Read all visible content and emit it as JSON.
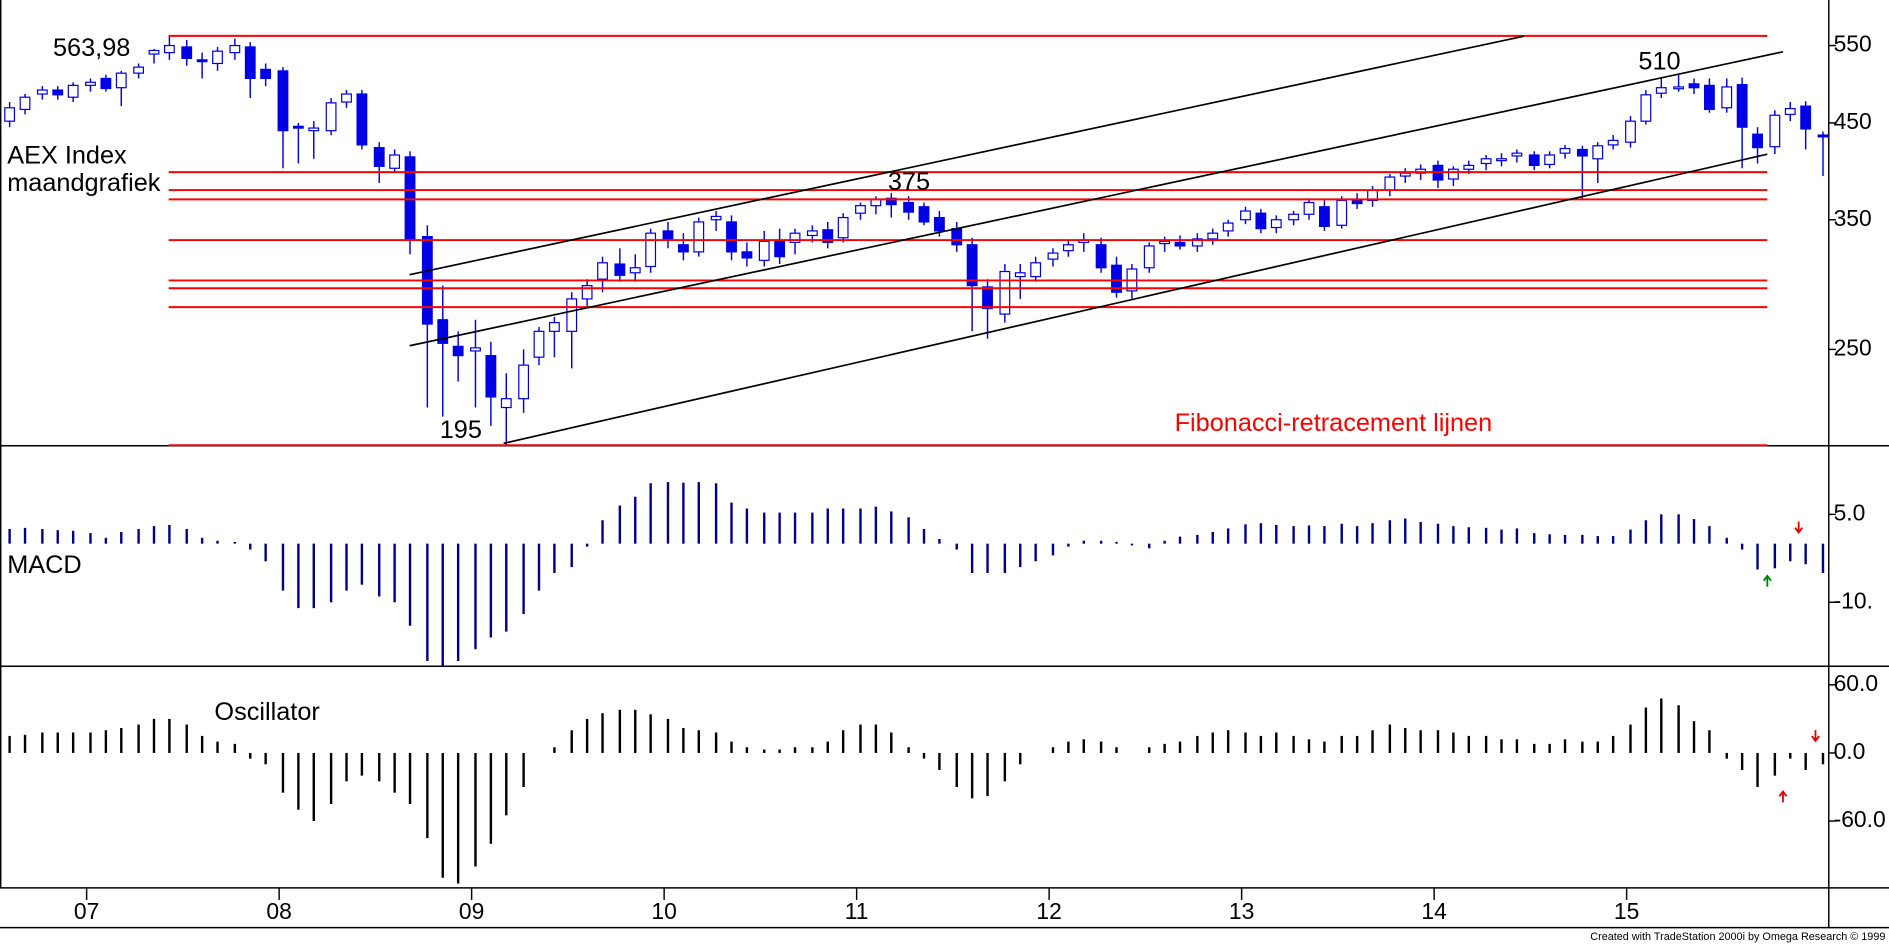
{
  "chart_data": [
    {
      "type": "candlestick",
      "title": "AEX Index",
      "subtitle": "maandgrafiek",
      "x": [
        2006.6,
        2006.68,
        2006.77,
        2006.85,
        2006.93,
        2007.02,
        2007.1,
        2007.18,
        2007.27,
        2007.35,
        2007.43,
        2007.52,
        2007.6,
        2007.68,
        2007.77,
        2007.85,
        2007.93,
        2008.02,
        2008.1,
        2008.18,
        2008.27,
        2008.35,
        2008.43,
        2008.52,
        2008.6,
        2008.68,
        2008.77,
        2008.85,
        2008.93,
        2009.02,
        2009.1,
        2009.18,
        2009.27,
        2009.35,
        2009.43,
        2009.52,
        2009.6,
        2009.68,
        2009.77,
        2009.85,
        2009.93,
        2010.02,
        2010.1,
        2010.18,
        2010.27,
        2010.35,
        2010.43,
        2010.52,
        2010.6,
        2010.68,
        2010.77,
        2010.85,
        2010.93,
        2011.02,
        2011.1,
        2011.18,
        2011.27,
        2011.35,
        2011.43,
        2011.52,
        2011.6,
        2011.68,
        2011.77,
        2011.85,
        2011.93,
        2012.02,
        2012.1,
        2012.18,
        2012.27,
        2012.35,
        2012.43,
        2012.52,
        2012.6,
        2012.68,
        2012.77,
        2012.85,
        2012.93,
        2013.02,
        2013.1,
        2013.18,
        2013.27,
        2013.35,
        2013.43,
        2013.52,
        2013.6,
        2013.68,
        2013.77,
        2013.85,
        2013.93,
        2014.02,
        2014.1,
        2014.18,
        2014.27,
        2014.35,
        2014.43,
        2014.52,
        2014.6,
        2014.68,
        2014.77,
        2014.85,
        2014.93,
        2015.02,
        2015.1,
        2015.18,
        2015.27,
        2015.35,
        2015.43,
        2015.52,
        2015.6,
        2015.68,
        2015.77,
        2015.85,
        2015.93,
        2016.02
      ],
      "open": [
        452,
        466,
        485,
        490,
        481,
        496,
        505,
        493,
        512,
        538,
        540,
        548,
        530,
        525,
        540,
        548,
        517,
        515,
        446,
        441,
        441,
        475,
        485,
        422,
        400,
        412,
        335,
        270,
        252,
        249,
        246,
        215,
        220,
        245,
        262,
        262,
        285,
        300,
        312,
        305,
        310,
        340,
        328,
        322,
        350,
        348,
        322,
        315,
        332,
        330,
        336,
        341,
        334,
        356,
        363,
        370,
        366,
        362,
        352,
        342,
        328,
        294,
        274,
        302,
        302,
        316,
        323,
        330,
        328,
        311,
        291,
        309,
        329,
        330,
        327,
        333,
        340,
        350,
        356,
        343,
        350,
        355,
        362,
        345,
        368,
        368,
        378,
        392,
        395,
        403,
        389,
        399,
        405,
        408,
        413,
        414,
        404,
        416,
        420,
        410,
        425,
        428,
        452,
        486,
        492,
        498,
        496,
        468,
        497,
        437,
        423,
        460,
        470,
        436
      ],
      "high": [
        475,
        485,
        495,
        495,
        500,
        505,
        510,
        515,
        525,
        545,
        563.98,
        558,
        540,
        548,
        560,
        555,
        525,
        520,
        450,
        452,
        480,
        490,
        490,
        428,
        420,
        418,
        345,
        295,
        262,
        270,
        255,
        235,
        250,
        265,
        272,
        290,
        300,
        318,
        325,
        320,
        342,
        348,
        338,
        352,
        358,
        354,
        330,
        340,
        342,
        342,
        345,
        348,
        356,
        366,
        372,
        375,
        372,
        366,
        358,
        348,
        334,
        300,
        312,
        312,
        318,
        325,
        332,
        338,
        334,
        318,
        312,
        330,
        335,
        336,
        338,
        342,
        350,
        362,
        360,
        354,
        358,
        370,
        368,
        372,
        375,
        382,
        394,
        400,
        404,
        408,
        402,
        408,
        414,
        416,
        420,
        418,
        418,
        425,
        424,
        428,
        436,
        458,
        490,
        505,
        510,
        505,
        505,
        505,
        506,
        445,
        465,
        475,
        476,
        440
      ],
      "low": [
        445,
        460,
        478,
        478,
        475,
        488,
        488,
        470,
        505,
        525,
        530,
        522,
        505,
        515,
        530,
        480,
        495,
        400,
        405,
        410,
        436,
        468,
        420,
        385,
        395,
        320,
        215,
        210,
        230,
        215,
        205,
        195,
        212,
        240,
        245,
        238,
        278,
        290,
        298,
        298,
        305,
        325,
        315,
        318,
        340,
        315,
        310,
        310,
        312,
        320,
        330,
        325,
        330,
        350,
        355,
        352,
        350,
        345,
        335,
        322,
        262,
        257,
        268,
        285,
        298,
        310,
        318,
        322,
        305,
        286,
        285,
        305,
        322,
        324,
        322,
        328,
        335,
        346,
        338,
        338,
        345,
        350,
        340,
        342,
        360,
        362,
        372,
        385,
        388,
        380,
        382,
        394,
        398,
        402,
        406,
        398,
        400,
        410,
        368,
        385,
        420,
        422,
        448,
        480,
        488,
        485,
        462,
        462,
        400,
        405,
        415,
        452,
        420,
        392
      ],
      "close": [
        468,
        481,
        490,
        484,
        496,
        500,
        492,
        512,
        520,
        543,
        550,
        532,
        528,
        542,
        550,
        505,
        505,
        441,
        444,
        444,
        474,
        485,
        425,
        402,
        414,
        333,
        267,
        254,
        246,
        251,
        221,
        220,
        240,
        262,
        268,
        285,
        295,
        313,
        303,
        309,
        338,
        332,
        322,
        348,
        353,
        322,
        317,
        331,
        318,
        338,
        340,
        330,
        352,
        363,
        369,
        364,
        357,
        348,
        340,
        328,
        295,
        278,
        306,
        305,
        313,
        321,
        328,
        332,
        309,
        290,
        308,
        327,
        331,
        327,
        333,
        338,
        347,
        358,
        342,
        350,
        355,
        366,
        344,
        368,
        365,
        378,
        391,
        395,
        399,
        388,
        399,
        403,
        410,
        410,
        416,
        403,
        414,
        421,
        413,
        424,
        430,
        452,
        484,
        493,
        494,
        493,
        466,
        494,
        445,
        422,
        459,
        467,
        443,
        434
      ],
      "color": "#0000e6",
      "up_fill": "#ffffff",
      "yscale": "log",
      "ylim": [
        194.7,
        619
      ],
      "yticks": [
        250,
        350,
        450,
        550
      ],
      "xlim": [
        2006.55,
        2016.05
      ],
      "xticks": [
        {
          "value": 2007,
          "label": "07"
        },
        {
          "value": 2008,
          "label": "08"
        },
        {
          "value": 2009,
          "label": "09"
        },
        {
          "value": 2010,
          "label": "10"
        },
        {
          "value": 2011,
          "label": "11"
        },
        {
          "value": 2012,
          "label": "12"
        },
        {
          "value": 2013,
          "label": "13"
        },
        {
          "value": 2014,
          "label": "14"
        },
        {
          "value": 2015,
          "label": "15"
        }
      ],
      "hlines": [
        563.98,
        396,
        378,
        369,
        332,
        299,
        293,
        279,
        195
      ],
      "hline_color": "#ff0000",
      "annotations": [
        "563,98",
        "195",
        "375",
        "510",
        "Fibonacci-retracement lijnen"
      ]
    },
    {
      "type": "bar",
      "title": "MACD",
      "values": [
        2.5,
        2.7,
        2.5,
        2.3,
        2.2,
        1.8,
        1,
        2,
        2.5,
        3,
        3.2,
        2.5,
        1,
        0.5,
        0.3,
        -1,
        -3,
        -8,
        -11,
        -11,
        -10,
        -8,
        -7,
        -9,
        -10,
        -14,
        -20,
        -21,
        -20,
        -18,
        -16,
        -15,
        -12,
        -8,
        -5,
        -4,
        -0.5,
        4,
        6.5,
        8,
        10.3,
        10.5,
        10.4,
        10.5,
        10.3,
        7,
        6,
        5.3,
        5.3,
        5.3,
        5.3,
        6,
        6,
        6,
        6.3,
        5.5,
        4.5,
        2.5,
        0.8,
        -1,
        -5,
        -5,
        -5,
        -4,
        -3,
        -2,
        -0.5,
        0.5,
        0.5,
        0.3,
        -0.3,
        -0.8,
        0.5,
        1.2,
        1.5,
        2,
        2.6,
        3.3,
        3.5,
        3.2,
        3,
        3.1,
        3,
        3.4,
        3,
        3.5,
        4,
        4.3,
        3.7,
        3.4,
        3,
        2.8,
        2.7,
        2.4,
        2.6,
        1.8,
        1.6,
        1.5,
        1.5,
        1.3,
        1.3,
        2.4,
        4,
        5,
        5,
        4.2,
        3,
        1,
        -1,
        -4.4,
        -4.2,
        -3,
        -3.5,
        -5
      ],
      "color": "#00008b",
      "ylim": [
        -20.9,
        16.7
      ],
      "yticks": [
        {
          "value": 5,
          "label": "5.0"
        },
        {
          "value": -10,
          "label": "-10."
        }
      ]
    },
    {
      "type": "bar",
      "title": "Oscillator",
      "values": [
        15,
        16,
        18,
        18,
        18,
        18,
        20,
        22,
        25,
        30,
        30,
        25,
        15,
        10,
        8,
        -5,
        -10,
        -35,
        -50,
        -60,
        -45,
        -25,
        -20,
        -25,
        -35,
        -45,
        -75,
        -110,
        -115,
        -100,
        -80,
        -55,
        -30,
        0,
        5,
        20,
        30,
        35,
        38,
        38,
        34,
        30,
        22,
        20,
        18,
        10,
        5,
        3,
        3,
        5,
        5,
        10,
        20,
        25,
        25,
        18,
        5,
        -5,
        -15,
        -30,
        -40,
        -38,
        -25,
        -10,
        0,
        5,
        10,
        12,
        10,
        5,
        0,
        5,
        8,
        10,
        15,
        18,
        20,
        18,
        15,
        18,
        15,
        12,
        10,
        15,
        15,
        20,
        25,
        22,
        20,
        20,
        18,
        15,
        15,
        12,
        12,
        8,
        8,
        12,
        10,
        10,
        15,
        25,
        40,
        48,
        42,
        28,
        20,
        -5,
        -15,
        -30,
        -20,
        -5,
        -15,
        -10
      ],
      "color": "#000000",
      "ylim": [
        -118.9,
        76.4
      ],
      "yticks": [
        {
          "value": 60,
          "label": "60.0"
        },
        {
          "value": 0,
          "label": "0.0"
        },
        {
          "value": -60,
          "label": "-60.0"
        }
      ]
    }
  ],
  "footer": "Created with TradeStation 2000i by Omega Research © 1999"
}
